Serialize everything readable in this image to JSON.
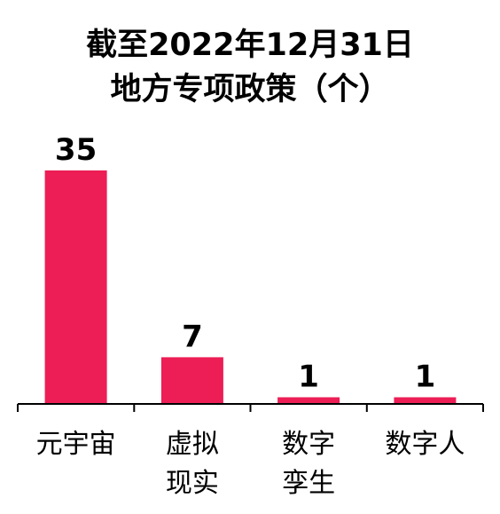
{
  "chart_data": {
    "type": "bar",
    "title_lines": [
      "截至2022年12月31日",
      "地方专项政策（个）"
    ],
    "categories": [
      [
        "元宇宙"
      ],
      [
        "虚拟",
        "现实"
      ],
      [
        "数字",
        "孪生"
      ],
      [
        "数字人"
      ]
    ],
    "values": [
      35,
      7,
      1,
      1
    ],
    "data_labels": [
      "35",
      "7",
      "1",
      "1"
    ],
    "ylim": [
      0,
      35
    ],
    "grid": false,
    "legend": "none",
    "bar_color": "#EC1E55",
    "axis_color": "#000000",
    "text_color": "#000000"
  }
}
